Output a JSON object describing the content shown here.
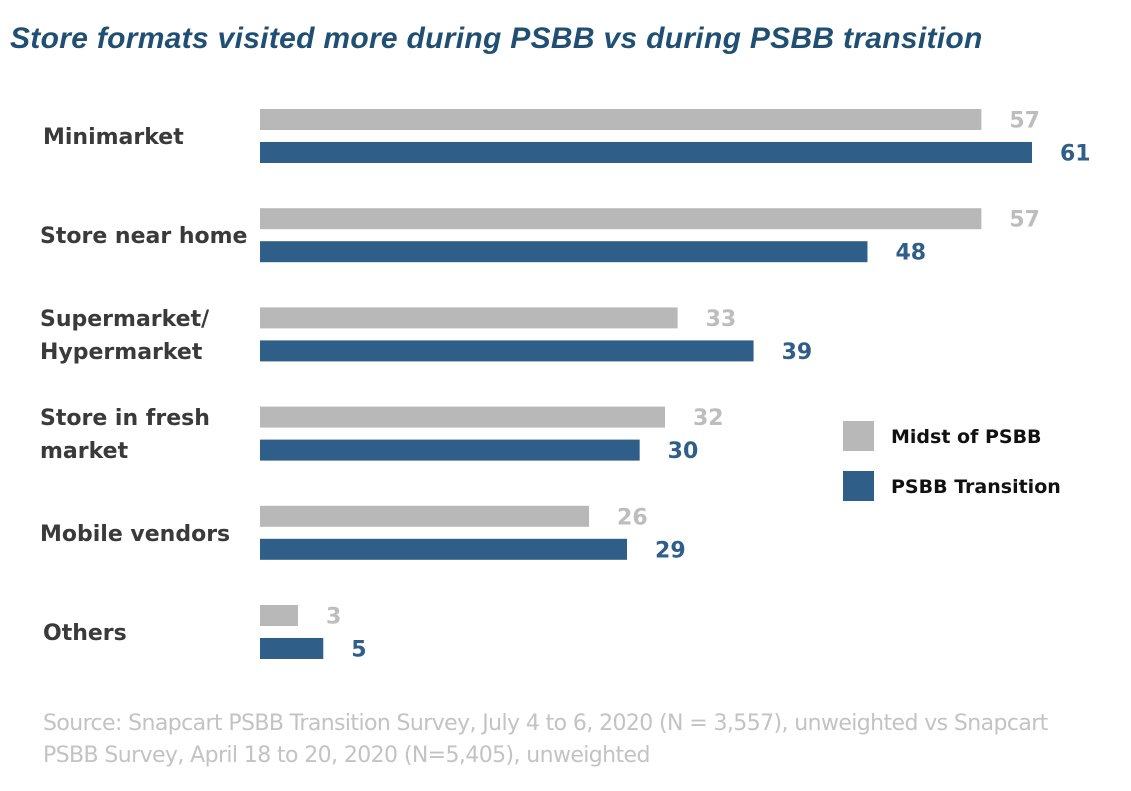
{
  "chart_data": {
    "type": "bar",
    "orientation": "horizontal",
    "title": "Store formats visited more during PSBB vs during PSBB transition",
    "categories": [
      [
        "Minimarket"
      ],
      [
        "Store near home"
      ],
      [
        "Supermarket/",
        "Hypermarket"
      ],
      [
        "Store in fresh",
        "market"
      ],
      [
        "Mobile vendors"
      ],
      [
        "Others"
      ]
    ],
    "series": [
      {
        "name": "Midst of PSBB",
        "values": [
          57,
          57,
          33,
          32,
          26,
          3
        ],
        "color": "#b8b8b8",
        "label_color": "#bdbdbd"
      },
      {
        "name": "PSBB Transition",
        "values": [
          61,
          48,
          39,
          30,
          29,
          5
        ],
        "color": "#2f5f89",
        "label_color": "#2f5f89"
      }
    ],
    "xlim": [
      0,
      61
    ],
    "grid": false,
    "legend_position": "right"
  },
  "source": "Source: Snapcart PSBB Transition Survey, July 4 to 6, 2020 (N = 3,557), unweighted vs Snapcart PSBB Survey, April 18 to 20, 2020 (N=5,405), unweighted"
}
